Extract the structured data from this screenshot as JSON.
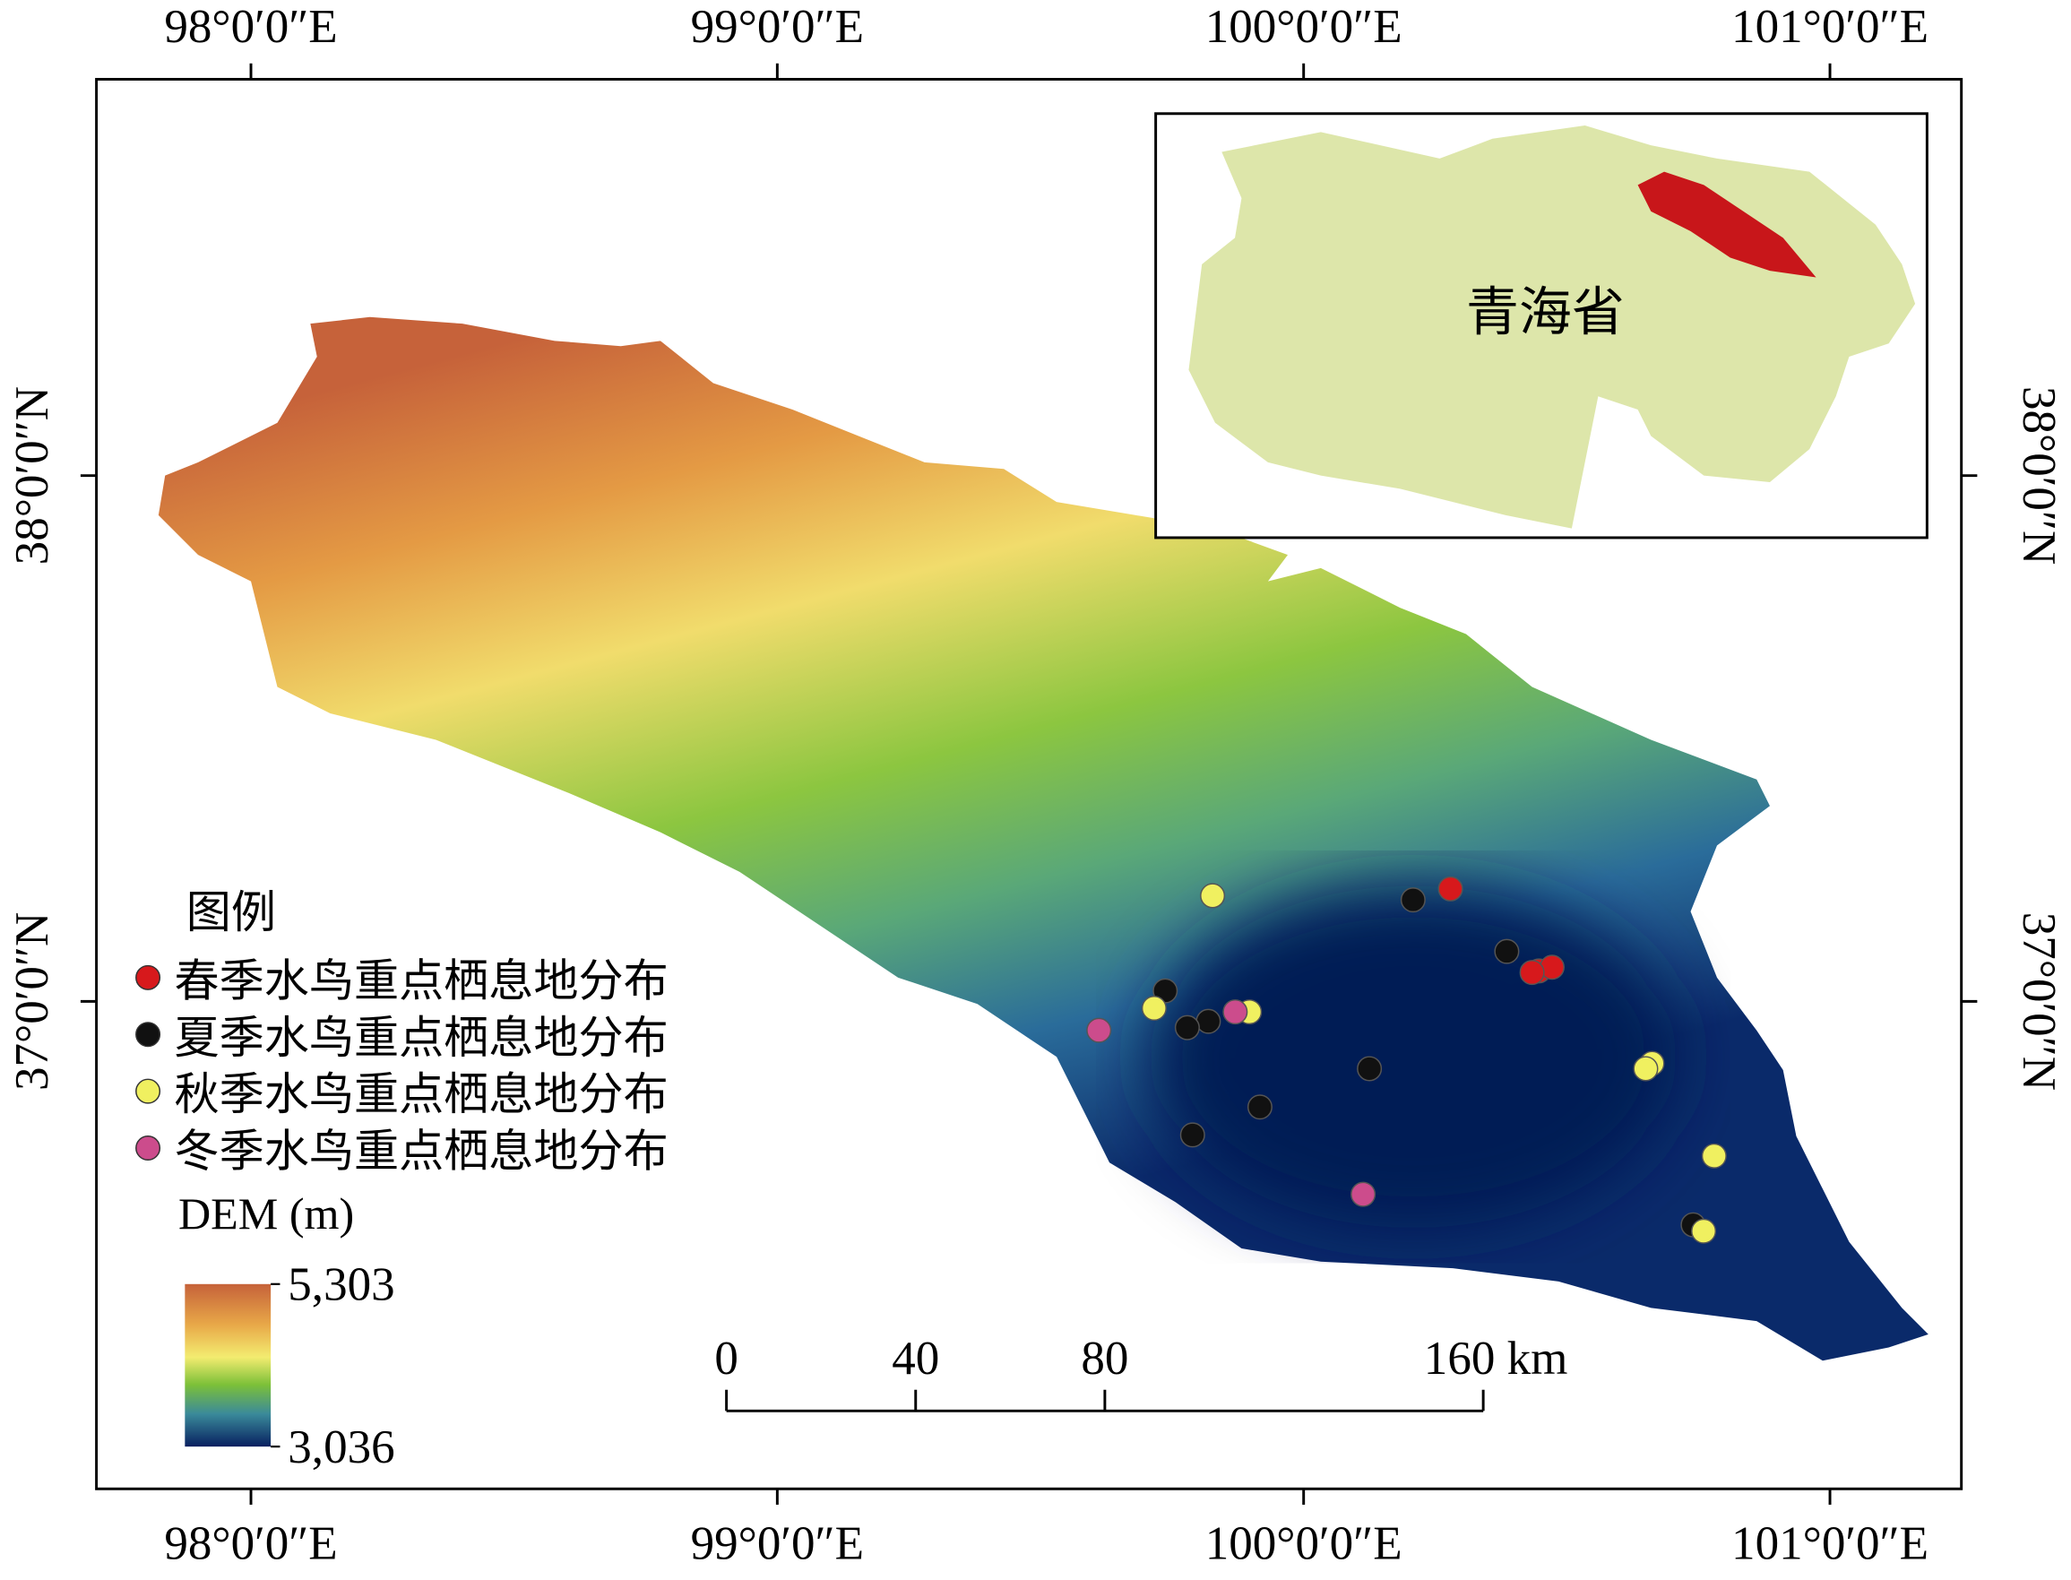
{
  "axes": {
    "lon_ticks": [
      {
        "value": 98,
        "label": "98°0′0″E"
      },
      {
        "value": 99,
        "label": "99°0′0″E"
      },
      {
        "value": 100,
        "label": "100°0′0″E"
      },
      {
        "value": 101,
        "label": "101°0′0″E"
      }
    ],
    "lat_ticks": [
      {
        "value": 38,
        "label": "38°0′0″N"
      },
      {
        "value": 37,
        "label": "37°0′0″N"
      }
    ]
  },
  "inset": {
    "label": "青海省"
  },
  "legend": {
    "title": "图例",
    "series": [
      {
        "name": "春季水鸟重点栖息地分布",
        "color": "#d7191c",
        "lon": [
          100.279,
          100.447,
          100.472,
          100.434
        ],
        "lat": [
          37.214,
          37.058,
          37.065,
          37.055
        ]
      },
      {
        "name": "夏季水鸟重点栖息地分布",
        "color": "#111111",
        "lon": [
          100.208,
          100.386,
          99.737,
          99.819,
          99.779,
          100.125,
          99.917,
          99.789,
          100.74
        ],
        "lat": [
          37.193,
          37.095,
          37.02,
          36.962,
          36.95,
          36.872,
          36.799,
          36.746,
          36.575
        ]
      },
      {
        "name": "秋季水鸟重点栖息地分布",
        "color": "#f0f060",
        "lon": [
          99.827,
          99.716,
          99.897,
          100.662,
          100.65,
          100.78,
          100.76
        ],
        "lat": [
          37.201,
          36.987,
          36.98,
          36.882,
          36.872,
          36.706,
          36.563
        ]
      },
      {
        "name": "冬季水鸟重点栖息地分布",
        "color": "#cc4c8c",
        "lon": [
          99.611,
          99.87,
          100.113
        ],
        "lat": [
          36.945,
          36.98,
          36.633
        ]
      }
    ],
    "dem_title": "DEM (m)",
    "dem_range": [
      {
        "value": 5303,
        "label": "5,303"
      },
      {
        "value": 3036,
        "label": "3,036"
      }
    ]
  },
  "scale_bar": {
    "ticks": [
      0,
      40,
      80,
      {
        "value": 160,
        "label": "160 km"
      }
    ]
  }
}
